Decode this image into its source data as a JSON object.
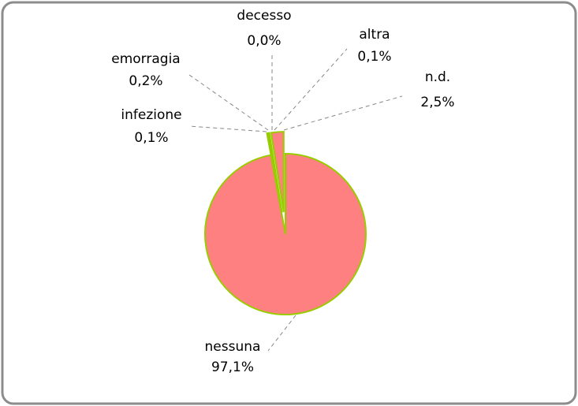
{
  "chart_data": {
    "type": "pie",
    "categories": [
      "nessuna",
      "infezione",
      "emorragia",
      "decesso",
      "altra",
      "n.d."
    ],
    "values": [
      97.1,
      0.1,
      0.2,
      0.0,
      0.1,
      2.5
    ],
    "value_labels": [
      "97,1%",
      "0,1%",
      "0,2%",
      "0,0%",
      "0,1%",
      "2,5%"
    ],
    "colors": [
      "#ff8080",
      "#99cc00",
      "#99cc00",
      "#99cc00",
      "#99cc00",
      "#ff8080"
    ],
    "edge_color": "#99cc00"
  }
}
